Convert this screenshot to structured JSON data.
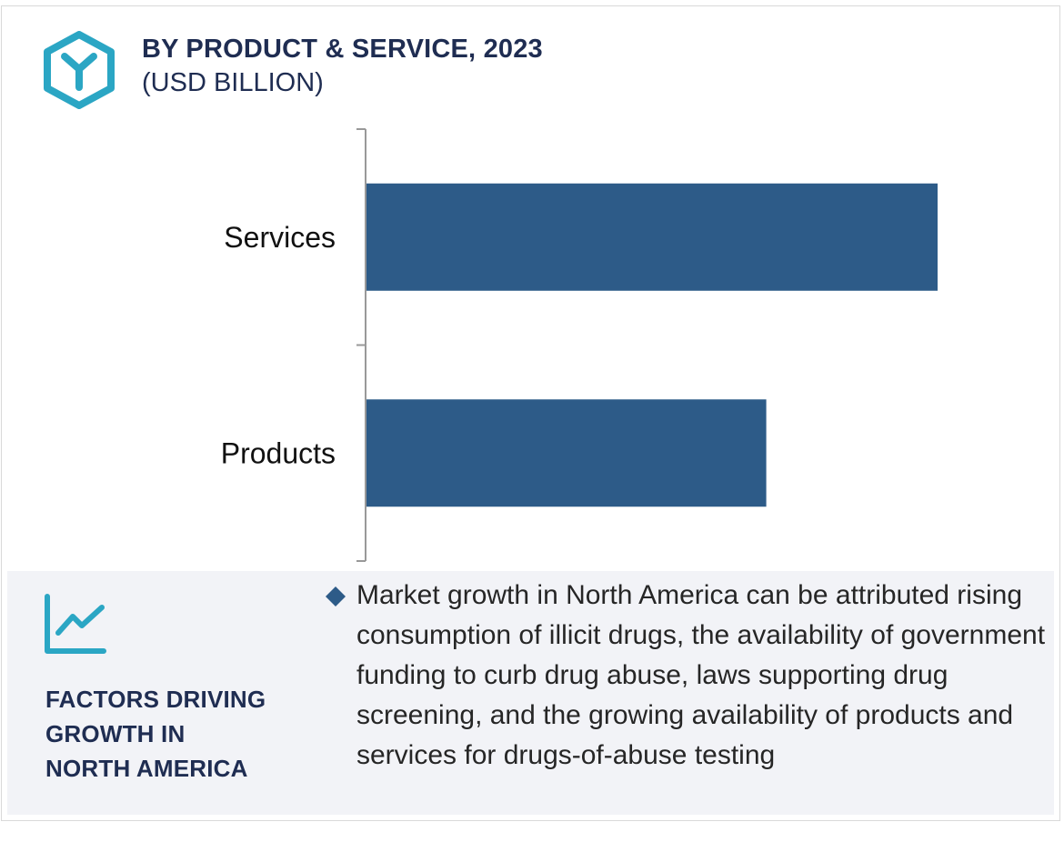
{
  "header": {
    "title": "BY PRODUCT & SERVICE, 2023",
    "subtitle": "(USD BILLION)"
  },
  "colors": {
    "bar": "#2d5b88",
    "accent": "#2ba6c4",
    "heading": "#1f2d52",
    "panel_bg": "#f2f3f7",
    "axis": "#999999"
  },
  "icons": {
    "logo": "hexagon-y-logo-icon",
    "factors": "trend-chart-icon",
    "bullet": "diamond-bullet-icon"
  },
  "chart_data": {
    "type": "bar",
    "orientation": "horizontal",
    "categories": [
      "Services",
      "Products"
    ],
    "values": [
      1.0,
      0.7
    ],
    "title": "BY PRODUCT & SERVICE, 2023",
    "subtitle": "(USD BILLION)",
    "xlim": [
      0,
      1.2
    ],
    "grid": false
  },
  "factors": {
    "heading_lines": [
      "FACTORS DRIVING",
      "GROWTH IN",
      "NORTH AMERICA"
    ],
    "text": "Market growth in North America can be attributed rising consumption of illicit drugs, the availability of government funding to curb drug abuse, laws supporting drug screening, and the growing availability of products and services for drugs-of-abuse testing"
  }
}
